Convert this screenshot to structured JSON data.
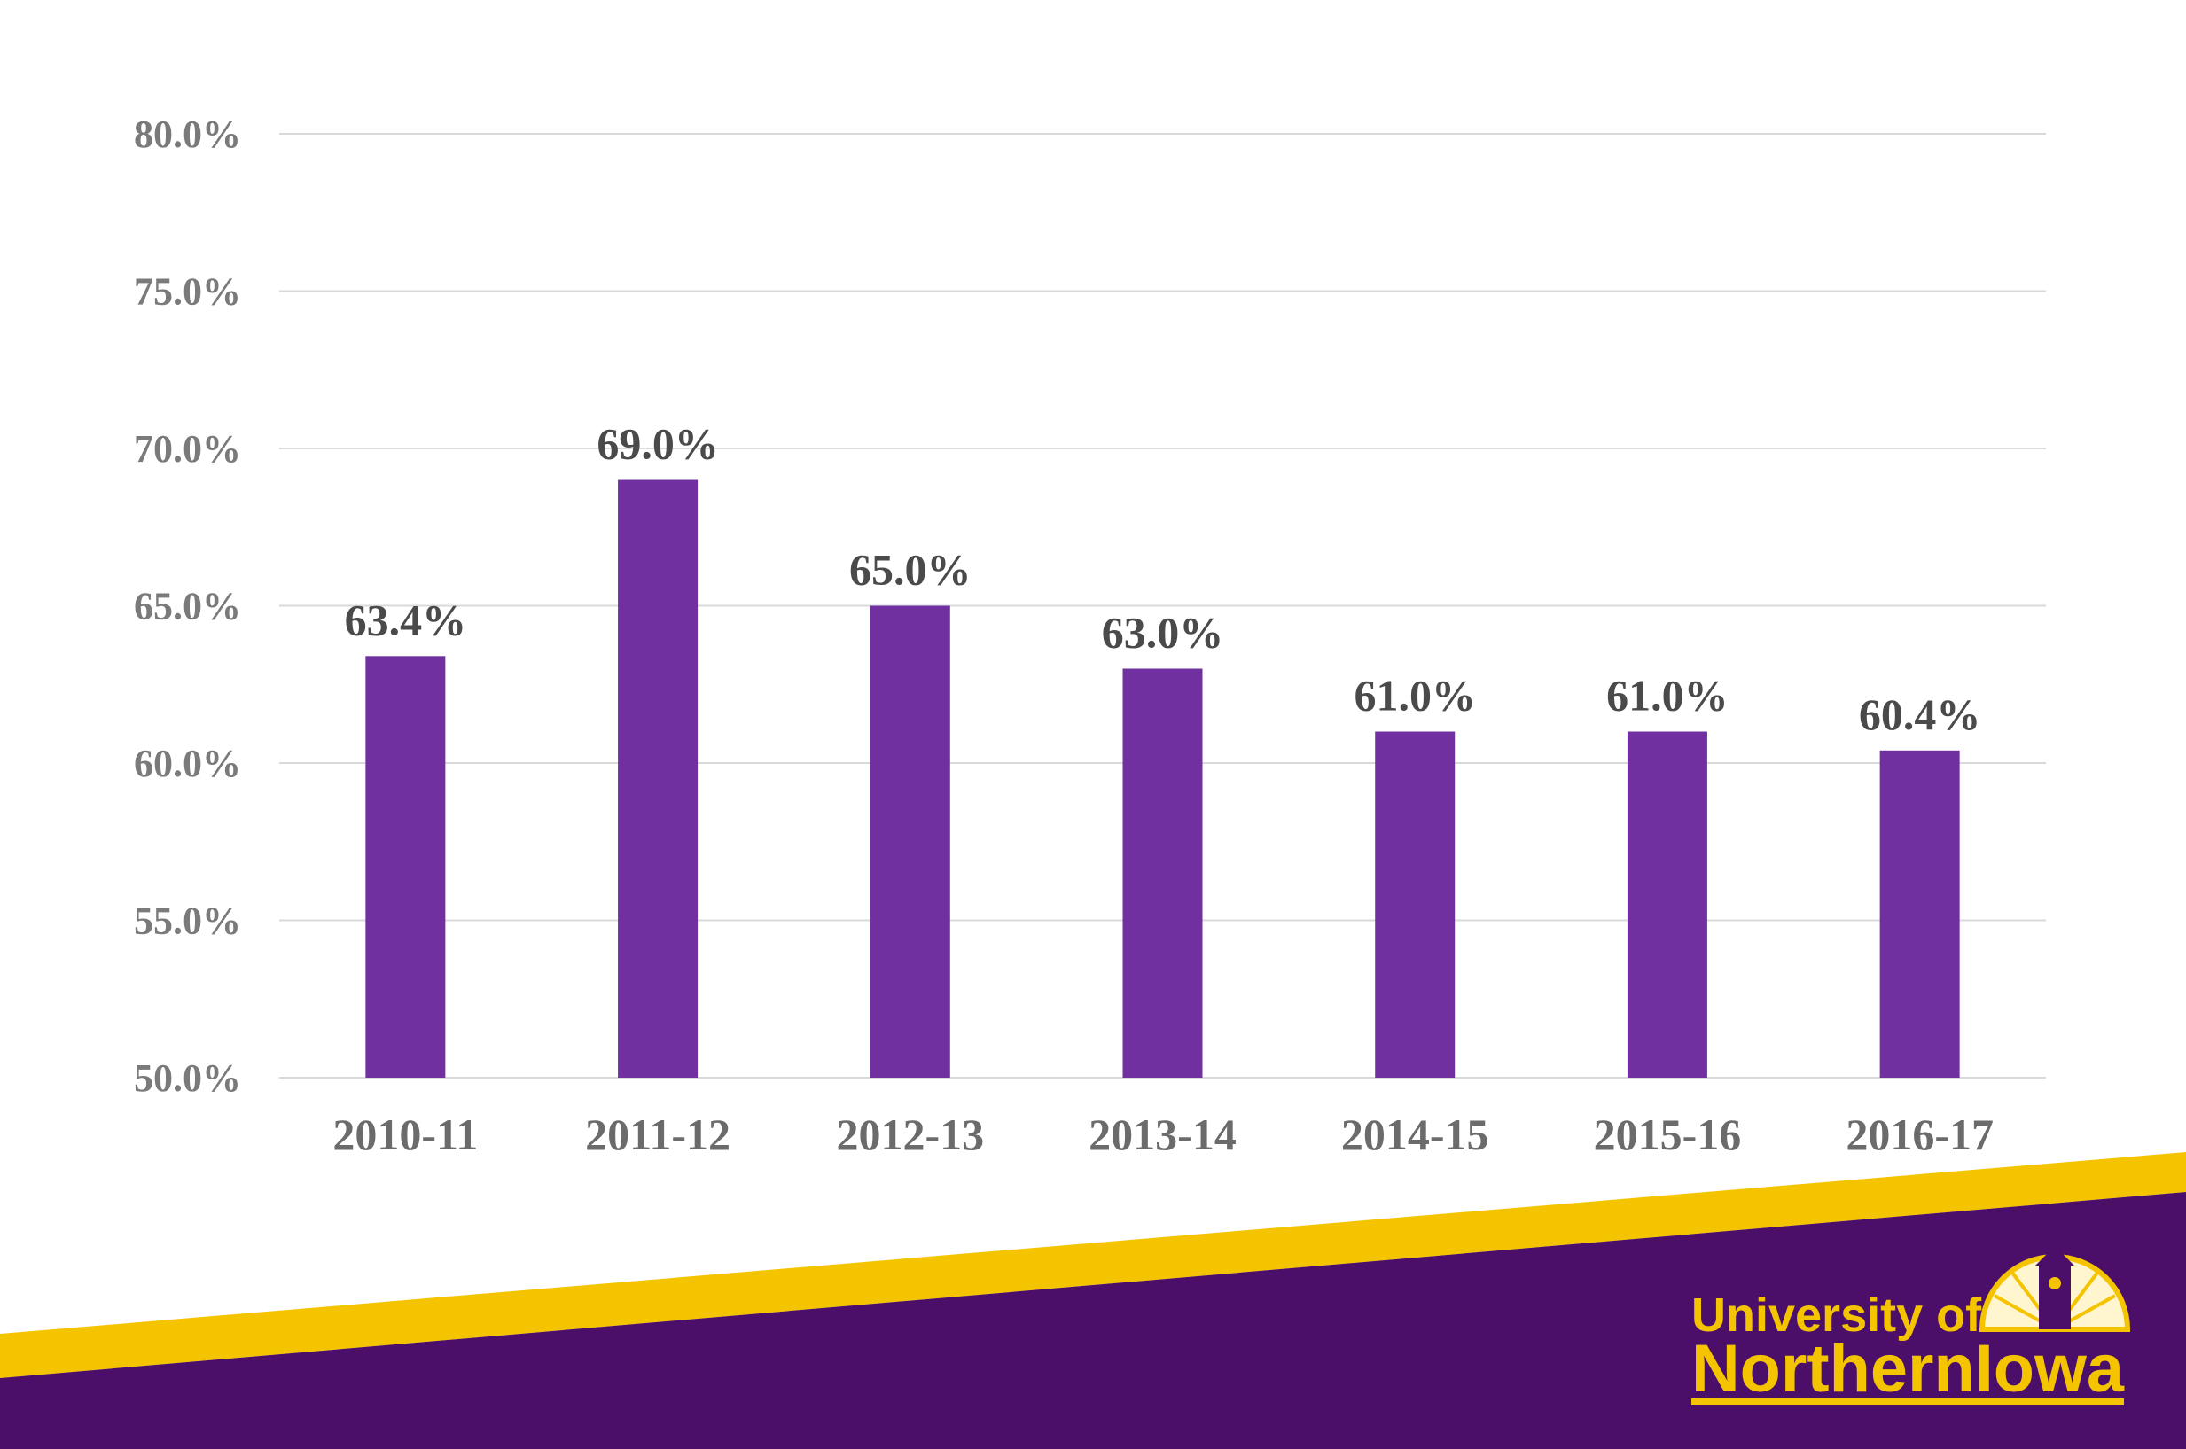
{
  "chart_data": {
    "type": "bar",
    "categories": [
      "2010-11",
      "2011-12",
      "2012-13",
      "2013-14",
      "2014-15",
      "2015-16",
      "2016-17"
    ],
    "values": [
      63.4,
      69.0,
      65.0,
      63.0,
      61.0,
      61.0,
      60.4
    ],
    "data_labels": [
      "63.4%",
      "69.0%",
      "65.0%",
      "63.0%",
      "61.0%",
      "61.0%",
      "60.4%"
    ],
    "y_ticks": [
      50,
      55,
      60,
      65,
      70,
      75,
      80
    ],
    "y_tick_labels": [
      "50.0%",
      "55.0%",
      "60.0%",
      "65.0%",
      "70.0%",
      "75.0%",
      "80.0%"
    ],
    "ylim": [
      50,
      80
    ],
    "title": "",
    "xlabel": "",
    "ylabel": "",
    "grid": true,
    "bar_color": "#7030a0"
  },
  "footer": {
    "logo_line1": "University of",
    "logo_line2": "NorthernIowa",
    "purple": "#4b0f6a",
    "gold": "#f5c400"
  }
}
